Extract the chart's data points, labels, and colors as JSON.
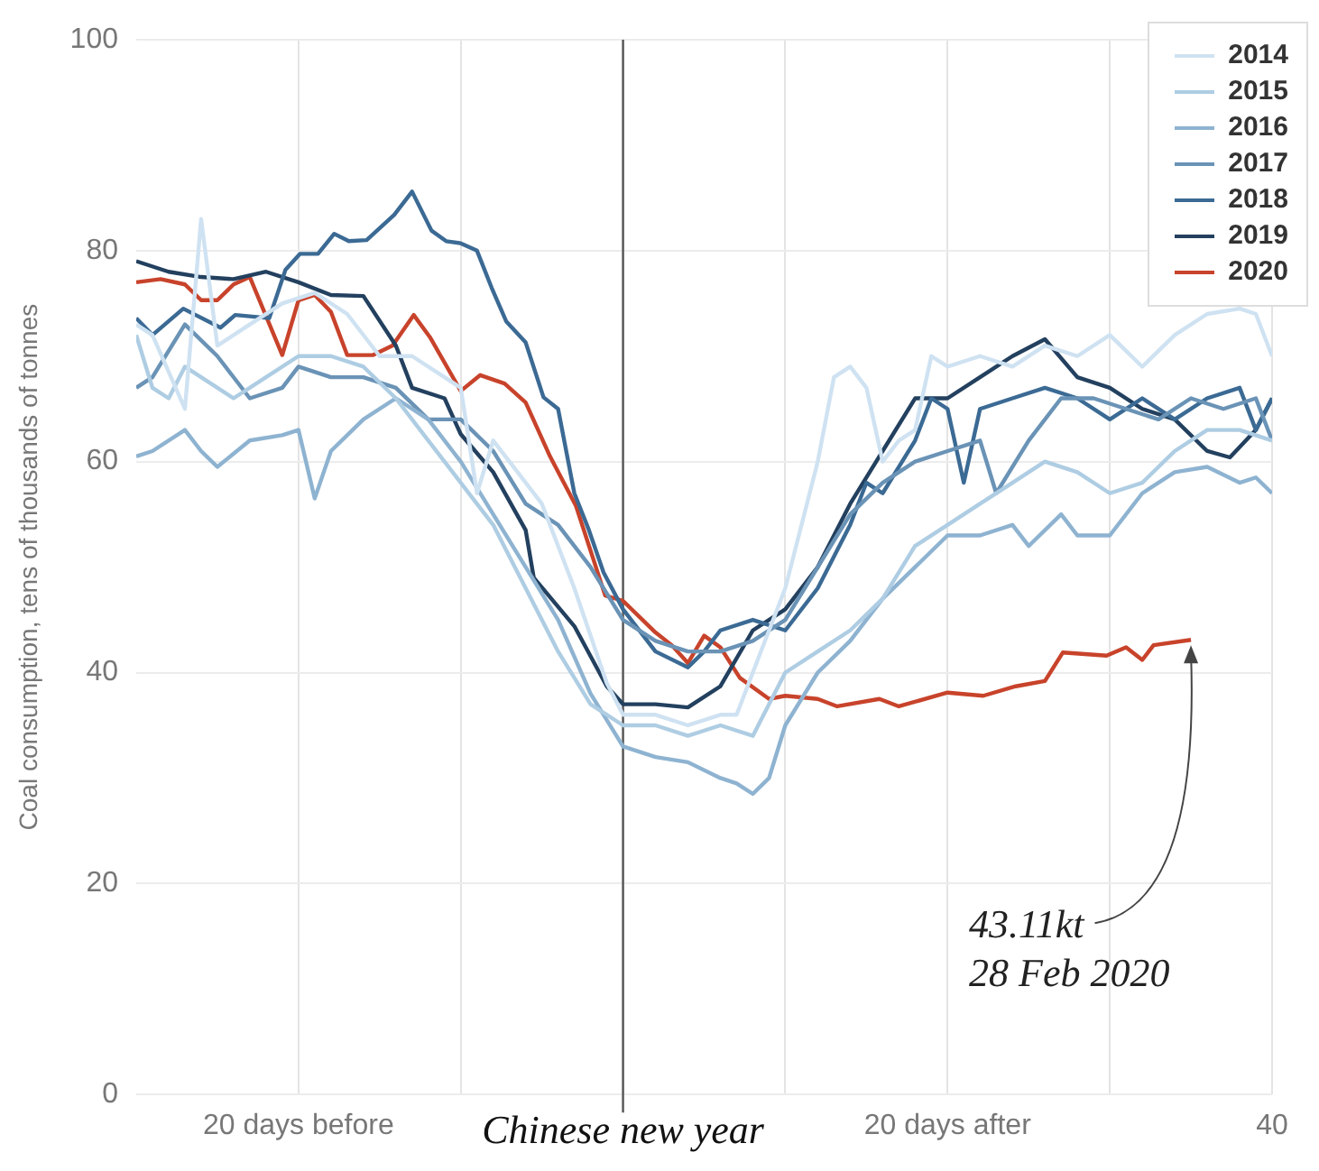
{
  "chart_data": {
    "type": "line",
    "ylabel": "Coal consumption, tens of thousands of tonnes",
    "xlim": [
      -30,
      40
    ],
    "xticks": [
      {
        "value": -20,
        "label": "20 days before"
      },
      {
        "value": -10,
        "label": null
      },
      {
        "value": 0,
        "label": "Chinese new year"
      },
      {
        "value": 10,
        "label": null
      },
      {
        "value": 20,
        "label": "20 days after"
      },
      {
        "value": 30,
        "label": null
      },
      40
    ],
    "ylim": [
      0,
      100
    ],
    "yticks": [
      0,
      20,
      40,
      60,
      80,
      100
    ],
    "grid": true,
    "legend": "top right",
    "marker": "none",
    "line_style": "solid",
    "ref_lines": [
      {
        "axis": "x",
        "value": 0,
        "color": "#555555"
      }
    ],
    "annotations": [
      {
        "text": "43.11kt\n28 Feb 2020",
        "x": 35,
        "y": 43.1
      }
    ],
    "series": [
      {
        "name": "2014",
        "color": "#cfe2f2",
        "x": [
          -30,
          -29,
          -27,
          -26,
          -25,
          -23,
          -21,
          -19,
          -17,
          -15,
          -13,
          -11,
          -10,
          -9,
          -8,
          -7,
          -5,
          -3,
          -1,
          0,
          2,
          4,
          6,
          7,
          8,
          10,
          12,
          13,
          14,
          15,
          16,
          17,
          18,
          19,
          20,
          22,
          24,
          26,
          28,
          30,
          32,
          34,
          36,
          38,
          39,
          40
        ],
        "values": [
          73,
          72,
          65,
          83,
          71,
          73,
          75,
          76,
          74,
          70,
          70,
          68,
          67,
          57,
          62,
          60,
          56,
          48,
          39,
          36,
          36,
          35,
          36,
          36,
          40,
          48,
          60,
          68,
          69,
          67,
          60,
          62,
          63,
          70,
          69,
          70,
          69,
          71,
          70,
          72,
          69,
          72,
          74,
          74.5,
          74,
          70
        ]
      },
      {
        "name": "2015",
        "color": "#aecde3",
        "x": [
          -30,
          -29,
          -28,
          -27,
          -26,
          -24,
          -22,
          -20,
          -18,
          -16,
          -14,
          -12,
          -10,
          -8,
          -6,
          -4,
          -2,
          0,
          2,
          4,
          6,
          8,
          9,
          10,
          12,
          14,
          16,
          18,
          20,
          22,
          24,
          26,
          28,
          30,
          32,
          34,
          36,
          38,
          40
        ],
        "values": [
          72,
          67,
          66,
          69,
          68,
          66,
          68,
          70,
          70,
          69,
          66,
          62,
          58,
          54,
          48,
          42,
          37,
          35,
          35,
          34,
          35,
          34,
          37,
          40,
          42,
          44,
          47,
          52,
          54,
          56,
          58,
          60,
          59,
          57,
          58,
          61,
          63,
          63,
          62
        ]
      },
      {
        "name": "2016",
        "color": "#8eb3d1",
        "x": [
          -30,
          -29,
          -27,
          -26,
          -25,
          -23,
          -21,
          -20,
          -19,
          -18,
          -16,
          -14,
          -12,
          -10,
          -8,
          -6,
          -4,
          -2,
          0,
          2,
          4,
          6,
          7,
          8,
          9,
          10,
          12,
          14,
          16,
          18,
          20,
          22,
          24,
          25,
          27,
          28,
          30,
          32,
          34,
          36,
          38,
          39,
          40
        ],
        "values": [
          60.5,
          61,
          63,
          61,
          59.5,
          62,
          62.5,
          63,
          56.5,
          61,
          64,
          66,
          64,
          60,
          55,
          50,
          45,
          38,
          33,
          32,
          31.5,
          30,
          29.5,
          28.5,
          30,
          35,
          40,
          43,
          47,
          50,
          53,
          53,
          54,
          52,
          55,
          53,
          53,
          57,
          59,
          59.5,
          58,
          58.5,
          57
        ]
      },
      {
        "name": "2017",
        "color": "#6a93b6",
        "x": [
          -30,
          -29,
          -27,
          -25,
          -23,
          -21,
          -20,
          -18,
          -16,
          -14,
          -12,
          -10,
          -8,
          -6,
          -4,
          -2,
          0,
          2,
          4,
          6,
          8,
          10,
          12,
          14,
          16,
          18,
          20,
          22,
          23,
          25,
          27,
          29,
          31,
          33,
          35,
          37,
          39,
          40
        ],
        "values": [
          67,
          68,
          73,
          70,
          66,
          67,
          69,
          68,
          68,
          67,
          64,
          64,
          61,
          56,
          54,
          50,
          45,
          43,
          42,
          42,
          43,
          45,
          50,
          55,
          58,
          60,
          61,
          62,
          57,
          62,
          66,
          66,
          65,
          64,
          66,
          65,
          66,
          62
        ]
      },
      {
        "name": "2018",
        "color": "#3b6a94",
        "x": [
          -30,
          -29,
          -27.1,
          -24.8,
          -23.9,
          -21.8,
          -20.8,
          -19.9,
          -18.8,
          -17.8,
          -16.9,
          -15.8,
          -14.1,
          -13,
          -11.8,
          -10.9,
          -10,
          -9,
          -8.1,
          -7.2,
          -6,
          -4.9,
          -4,
          -3,
          -2.1,
          -1.2,
          0,
          2,
          4,
          5,
          6,
          8,
          10,
          12,
          14,
          15,
          16,
          18,
          19,
          20,
          21,
          22,
          24,
          26,
          28,
          30,
          32,
          34,
          36,
          38,
          39,
          40
        ],
        "values": [
          73.6,
          72,
          74.5,
          72.7,
          73.9,
          73.6,
          78.2,
          79.7,
          79.7,
          81.6,
          80.9,
          81,
          83.4,
          85.6,
          81.9,
          80.9,
          80.7,
          80,
          76.5,
          73.3,
          71.3,
          66.1,
          65,
          57,
          53.5,
          49.5,
          46,
          42,
          40.5,
          42,
          44,
          45,
          44,
          48,
          54,
          58,
          57,
          62,
          66,
          65,
          58,
          65,
          66,
          67,
          66,
          64,
          66,
          64,
          66,
          67,
          63,
          66
        ]
      },
      {
        "name": "2019",
        "color": "#23405f",
        "x": [
          -30,
          -28,
          -26,
          -24,
          -22,
          -20,
          -18,
          -16,
          -14,
          -13,
          -11,
          -10,
          -8,
          -6,
          -5.5,
          -3,
          -1,
          0,
          2,
          4,
          6,
          8,
          10,
          12,
          14,
          16,
          18,
          20,
          22,
          24,
          26,
          28,
          30,
          32,
          34,
          36,
          37.4,
          39,
          40
        ],
        "values": [
          79,
          78,
          77.5,
          77.3,
          78,
          77,
          75.8,
          75.7,
          71,
          67,
          66,
          62.6,
          59,
          53.5,
          49,
          44.4,
          38.7,
          37,
          37,
          36.7,
          38.7,
          44,
          46,
          50,
          56,
          61,
          66,
          66,
          68,
          70,
          71.6,
          68,
          67,
          65,
          64,
          61,
          60.4,
          63,
          66
        ]
      },
      {
        "name": "2020",
        "color": "#c8432b",
        "x": [
          -30,
          -28.5,
          -27,
          -26,
          -25,
          -24,
          -23,
          -21,
          -20,
          -19,
          -18,
          -17,
          -15.4,
          -14.2,
          -12.9,
          -11.9,
          -10,
          -8.8,
          -7.3,
          -6,
          -4.5,
          -2.9,
          -1.1,
          0,
          2,
          3,
          4,
          5,
          6,
          7.2,
          9,
          10,
          12,
          13.2,
          15.8,
          17,
          20,
          22.2,
          24.2,
          26,
          27.1,
          29.8,
          31,
          32,
          32.7,
          35
        ],
        "values": [
          77,
          77.3,
          76.8,
          75.3,
          75.3,
          76.8,
          77.5,
          70.1,
          75.3,
          75.8,
          74.2,
          70.1,
          70.1,
          71,
          73.9,
          71.8,
          66.7,
          68.2,
          67.4,
          65.6,
          60.5,
          55.8,
          47.3,
          46.8,
          43.8,
          42.6,
          40.9,
          43.5,
          42.4,
          39.5,
          37.5,
          37.8,
          37.5,
          36.8,
          37.5,
          36.8,
          38.1,
          37.8,
          38.7,
          39.2,
          41.9,
          41.6,
          42.4,
          41.2,
          42.6,
          43.1
        ]
      }
    ]
  }
}
